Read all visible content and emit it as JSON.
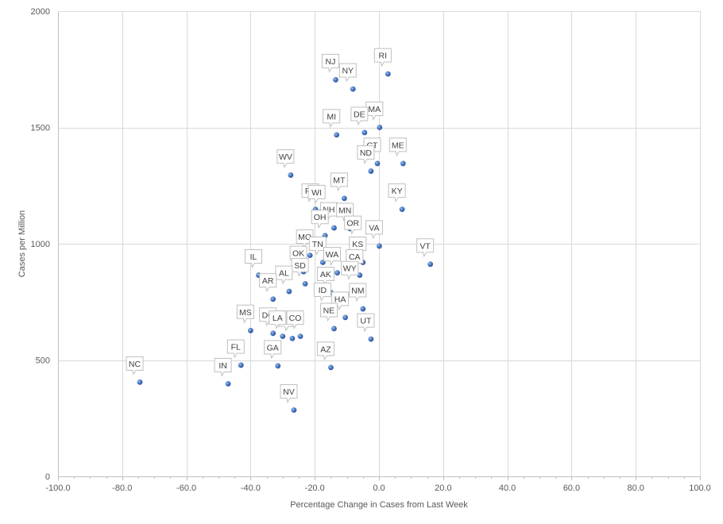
{
  "chart_data": {
    "type": "scatter",
    "title": "",
    "xlabel": "Percentage Change  in Cases from Last Week",
    "ylabel": "Cases per Million",
    "xlim": [
      -100,
      100
    ],
    "ylim": [
      0,
      2000
    ],
    "x_ticks": [
      -100,
      -80,
      -60,
      -40,
      -20,
      0,
      20,
      40,
      60,
      80,
      100
    ],
    "x_tick_labels": [
      "-100.0",
      "-80.0",
      "-60.0",
      "-40.0",
      "-20.0",
      "0.0",
      "20.0",
      "40.0",
      "60.0",
      "80.0",
      "100.0"
    ],
    "y_ticks": [
      0,
      500,
      1000,
      1500,
      2000
    ],
    "y_tick_labels": [
      "0",
      "500",
      "1000",
      "1500",
      "2000"
    ],
    "grid": true,
    "marker_color": "#4472c4",
    "points": [
      {
        "label": "RI",
        "x": 2.8,
        "y": 1730
      },
      {
        "label": "NJ",
        "x": -13.5,
        "y": 1705
      },
      {
        "label": "NY",
        "x": -8.1,
        "y": 1665
      },
      {
        "label": "MA",
        "x": 0.2,
        "y": 1500
      },
      {
        "label": "DE",
        "x": -4.5,
        "y": 1478
      },
      {
        "label": "MI",
        "x": -13.2,
        "y": 1468
      },
      {
        "label": "CT",
        "x": -0.5,
        "y": 1345
      },
      {
        "label": "ME",
        "x": 7.5,
        "y": 1345
      },
      {
        "label": "ND",
        "x": -2.5,
        "y": 1312
      },
      {
        "label": "WV",
        "x": -27.5,
        "y": 1295
      },
      {
        "label": "MT",
        "x": -10.8,
        "y": 1195
      },
      {
        "label": "KY",
        "x": 7.2,
        "y": 1148
      },
      {
        "label": "PA",
        "x": -19.8,
        "y": 1148
      },
      {
        "label": "WI",
        "x": -17.8,
        "y": 1142
      },
      {
        "label": "NH",
        "x": -14.0,
        "y": 1068
      },
      {
        "label": "MN",
        "x": -9.0,
        "y": 1065
      },
      {
        "label": "OH",
        "x": -16.8,
        "y": 1035
      },
      {
        "label": "OR",
        "x": -6.5,
        "y": 1010
      },
      {
        "label": "VA",
        "x": 0.1,
        "y": 990
      },
      {
        "label": "MO",
        "x": -21.5,
        "y": 950
      },
      {
        "label": "VT",
        "x": 16.0,
        "y": 912
      },
      {
        "label": "TN",
        "x": -17.5,
        "y": 920
      },
      {
        "label": "KS",
        "x": -5.0,
        "y": 920
      },
      {
        "label": "WA",
        "x": -13.0,
        "y": 875
      },
      {
        "label": "OK",
        "x": -23.5,
        "y": 880
      },
      {
        "label": "CA",
        "x": -6.0,
        "y": 865
      },
      {
        "label": "IL",
        "x": -37.5,
        "y": 865
      },
      {
        "label": "SD",
        "x": -23.0,
        "y": 828
      },
      {
        "label": "AL",
        "x": -28.0,
        "y": 795
      },
      {
        "label": "WY",
        "x": -7.5,
        "y": 815
      },
      {
        "label": "AK",
        "x": -15.0,
        "y": 790
      },
      {
        "label": "AR",
        "x": -33.0,
        "y": 762
      },
      {
        "label": "NM",
        "x": -5.0,
        "y": 720
      },
      {
        "label": "ID",
        "x": -16.0,
        "y": 722
      },
      {
        "label": "HA",
        "x": -10.5,
        "y": 683
      },
      {
        "label": "NE",
        "x": -14.0,
        "y": 635
      },
      {
        "label": "MS",
        "x": -40.0,
        "y": 627
      },
      {
        "label": "DC",
        "x": -33.0,
        "y": 615
      },
      {
        "label": "TX",
        "x": -27.0,
        "y": 593
      },
      {
        "label": "LA",
        "x": -30.0,
        "y": 602
      },
      {
        "label": "CO",
        "x": -24.5,
        "y": 602
      },
      {
        "label": "UT",
        "x": -2.5,
        "y": 590
      },
      {
        "label": "FL",
        "x": -43.0,
        "y": 478
      },
      {
        "label": "GA",
        "x": -31.5,
        "y": 475
      },
      {
        "label": "AZ",
        "x": -15.0,
        "y": 468
      },
      {
        "label": "NC",
        "x": -74.5,
        "y": 405
      },
      {
        "label": "IN",
        "x": -47.0,
        "y": 398
      },
      {
        "label": "NV",
        "x": -26.5,
        "y": 285
      }
    ]
  }
}
